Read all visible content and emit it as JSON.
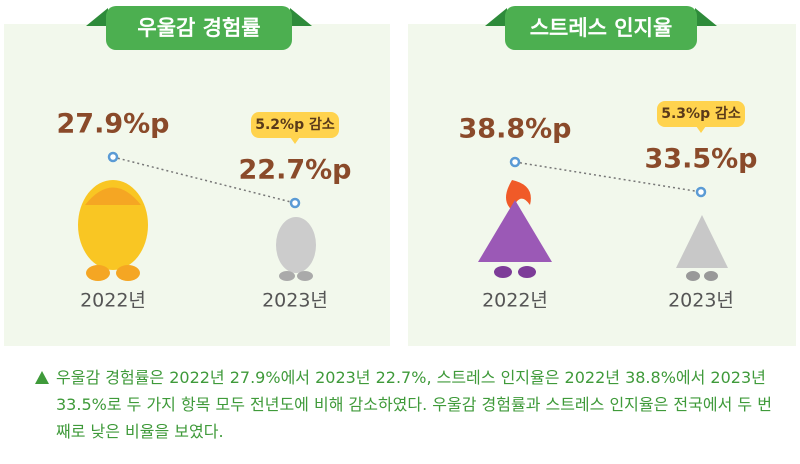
{
  "chart_data": [
    {
      "type": "line",
      "title": "우울감 경험률",
      "categories": [
        "2022년",
        "2023년"
      ],
      "values": [
        27.9,
        22.7
      ],
      "value_labels": [
        "27.9%p",
        "22.7%p"
      ],
      "annotation": "5.2%p 감소",
      "color": "#5b9bd5"
    },
    {
      "type": "line",
      "title": "스트레스 인지율",
      "categories": [
        "2022년",
        "2023년"
      ],
      "values": [
        38.8,
        33.5
      ],
      "value_labels": [
        "38.8%p",
        "33.5%p"
      ],
      "annotation": "5.3%p 감소",
      "color": "#5b9bd5"
    }
  ],
  "caption": "우울감 경험률은 2022년 27.9%에서 2023년 22.7%, 스트레스 인지율은 2022년 38.8%에서 2023년 33.5%로 두 가지 항목 모두 전년도에 비해 감소하였다. 우울감 경험률과 스트레스 인지율은 전국에서 두 번째로 낮은 비율을 보였다."
}
